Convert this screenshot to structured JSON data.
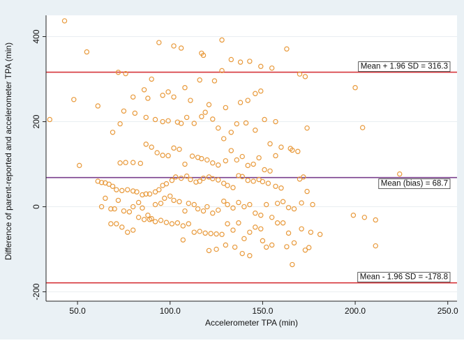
{
  "chart_data": {
    "type": "scatter",
    "xlabel": "Accelerometer TPA (min)",
    "ylabel": "Difference of parent-reported and accelerometer TPA (min)",
    "xlim": [
      33,
      255
    ],
    "ylim": [
      -222,
      450
    ],
    "x_ticks": [
      50,
      100,
      150,
      200,
      250
    ],
    "x_tick_labels": [
      "50.0",
      "100.0",
      "150.0",
      "200.0",
      "250.0"
    ],
    "y_ticks": [
      -200,
      0,
      200,
      400
    ],
    "y_tick_labels": [
      "-200",
      "0",
      "200",
      "400"
    ],
    "grid": true,
    "legend": "none",
    "colors": {
      "plot_background": "#ffffff",
      "outer_background": "#eaf1f5",
      "grid": "#e9eef1",
      "marker": "#e8993a",
      "limit_line": "#d6343a",
      "mean_line": "#7a3f8c"
    },
    "reference_lines": [
      {
        "y": 316.3,
        "label": "Mean + 1.96 SD = 316.3",
        "kind": "limit"
      },
      {
        "y": 68.7,
        "label": "Mean (bias) = 68.7",
        "kind": "mean"
      },
      {
        "y": -178.8,
        "label": "Mean - 1.96 SD = -178.8",
        "kind": "limit"
      }
    ],
    "points": [
      [
        43,
        437
      ],
      [
        35,
        205
      ],
      [
        48,
        252
      ],
      [
        51,
        97
      ],
      [
        55,
        364
      ],
      [
        61,
        237
      ],
      [
        72,
        316
      ],
      [
        76,
        313
      ],
      [
        94,
        386
      ],
      [
        102,
        378
      ],
      [
        106,
        373
      ],
      [
        117,
        361
      ],
      [
        128,
        392
      ],
      [
        118,
        356
      ],
      [
        163,
        371
      ],
      [
        155,
        326
      ],
      [
        173,
        306
      ],
      [
        170,
        312
      ],
      [
        133,
        346
      ],
      [
        138,
        340
      ],
      [
        143,
        342
      ],
      [
        149,
        330
      ],
      [
        86,
        275
      ],
      [
        90,
        300
      ],
      [
        99,
        270
      ],
      [
        108,
        280
      ],
      [
        116,
        298
      ],
      [
        124,
        296
      ],
      [
        128,
        320
      ],
      [
        96,
        262
      ],
      [
        80,
        258
      ],
      [
        88,
        255
      ],
      [
        102,
        258
      ],
      [
        111,
        250
      ],
      [
        121,
        240
      ],
      [
        130,
        233
      ],
      [
        138,
        245
      ],
      [
        142,
        250
      ],
      [
        146,
        266
      ],
      [
        149,
        272
      ],
      [
        69,
        175
      ],
      [
        73,
        195
      ],
      [
        75,
        225
      ],
      [
        81,
        220
      ],
      [
        87,
        210
      ],
      [
        92,
        205
      ],
      [
        96,
        200
      ],
      [
        99,
        202
      ],
      [
        104,
        199
      ],
      [
        106,
        196
      ],
      [
        109,
        210
      ],
      [
        113,
        196
      ],
      [
        117,
        212
      ],
      [
        119,
        222
      ],
      [
        123,
        206
      ],
      [
        126,
        185
      ],
      [
        129,
        160
      ],
      [
        133,
        175
      ],
      [
        136,
        195
      ],
      [
        141,
        197
      ],
      [
        146,
        180
      ],
      [
        151,
        205
      ],
      [
        154,
        148
      ],
      [
        157,
        200
      ],
      [
        160,
        140
      ],
      [
        174,
        185
      ],
      [
        165,
        137
      ],
      [
        73,
        103
      ],
      [
        76,
        104
      ],
      [
        80,
        104
      ],
      [
        84,
        102
      ],
      [
        87,
        147
      ],
      [
        90,
        140
      ],
      [
        93,
        127
      ],
      [
        96,
        121
      ],
      [
        99,
        120
      ],
      [
        102,
        138
      ],
      [
        105,
        135
      ],
      [
        108,
        100
      ],
      [
        112,
        119
      ],
      [
        115,
        116
      ],
      [
        117,
        113
      ],
      [
        120,
        110
      ],
      [
        123,
        103
      ],
      [
        126,
        98
      ],
      [
        130,
        108
      ],
      [
        133,
        132
      ],
      [
        136,
        110
      ],
      [
        139,
        118
      ],
      [
        142,
        97
      ],
      [
        145,
        100
      ],
      [
        148,
        115
      ],
      [
        151,
        87
      ],
      [
        154,
        84
      ],
      [
        157,
        120
      ],
      [
        166,
        133
      ],
      [
        169,
        130
      ],
      [
        61,
        60
      ],
      [
        63,
        57
      ],
      [
        65,
        56
      ],
      [
        67,
        53
      ],
      [
        69,
        48
      ],
      [
        71,
        40
      ],
      [
        74,
        38
      ],
      [
        77,
        40
      ],
      [
        80,
        37
      ],
      [
        82,
        35
      ],
      [
        85,
        28
      ],
      [
        87,
        30
      ],
      [
        89,
        30
      ],
      [
        92,
        35
      ],
      [
        94,
        40
      ],
      [
        96,
        50
      ],
      [
        98,
        54
      ],
      [
        101,
        62
      ],
      [
        103,
        70
      ],
      [
        106,
        67
      ],
      [
        109,
        72
      ],
      [
        111,
        64
      ],
      [
        114,
        58
      ],
      [
        116,
        60
      ],
      [
        118,
        67
      ],
      [
        121,
        70
      ],
      [
        123,
        66
      ],
      [
        126,
        63
      ],
      [
        129,
        55
      ],
      [
        131,
        50
      ],
      [
        134,
        45
      ],
      [
        137,
        73
      ],
      [
        139,
        71
      ],
      [
        142,
        62
      ],
      [
        145,
        60
      ],
      [
        148,
        64
      ],
      [
        150,
        59
      ],
      [
        153,
        55
      ],
      [
        157,
        48
      ],
      [
        160,
        44
      ],
      [
        170,
        65
      ],
      [
        172,
        70
      ],
      [
        174,
        36
      ],
      [
        177,
        5
      ],
      [
        63,
        0
      ],
      [
        65,
        20
      ],
      [
        68,
        -5
      ],
      [
        70,
        -5
      ],
      [
        72,
        15
      ],
      [
        75,
        -10
      ],
      [
        78,
        -12
      ],
      [
        80,
        0
      ],
      [
        83,
        10
      ],
      [
        85,
        -3
      ],
      [
        88,
        -20
      ],
      [
        90,
        -28
      ],
      [
        92,
        5
      ],
      [
        95,
        8
      ],
      [
        97,
        20
      ],
      [
        100,
        25
      ],
      [
        102,
        15
      ],
      [
        105,
        12
      ],
      [
        108,
        -10
      ],
      [
        110,
        8
      ],
      [
        113,
        5
      ],
      [
        115,
        -5
      ],
      [
        118,
        -10
      ],
      [
        120,
        0
      ],
      [
        123,
        -15
      ],
      [
        126,
        -8
      ],
      [
        129,
        13
      ],
      [
        131,
        5
      ],
      [
        134,
        -3
      ],
      [
        137,
        10
      ],
      [
        140,
        0
      ],
      [
        143,
        5
      ],
      [
        146,
        -15
      ],
      [
        149,
        -20
      ],
      [
        152,
        5
      ],
      [
        155,
        -25
      ],
      [
        158,
        8
      ],
      [
        161,
        12
      ],
      [
        164,
        -2
      ],
      [
        167,
        -5
      ],
      [
        171,
        9
      ],
      [
        68,
        -40
      ],
      [
        71,
        -40
      ],
      [
        74,
        -48
      ],
      [
        77,
        -60
      ],
      [
        80,
        -55
      ],
      [
        83,
        -25
      ],
      [
        86,
        -30
      ],
      [
        89,
        -30
      ],
      [
        92,
        -35
      ],
      [
        95,
        -32
      ],
      [
        98,
        -37
      ],
      [
        101,
        -40
      ],
      [
        104,
        -38
      ],
      [
        107,
        -45
      ],
      [
        110,
        -40
      ],
      [
        113,
        -60
      ],
      [
        116,
        -58
      ],
      [
        119,
        -62
      ],
      [
        122,
        -63
      ],
      [
        125,
        -64
      ],
      [
        128,
        -65
      ],
      [
        131,
        -40
      ],
      [
        134,
        -55
      ],
      [
        137,
        -38
      ],
      [
        140,
        -75
      ],
      [
        143,
        -60
      ],
      [
        146,
        -48
      ],
      [
        149,
        -52
      ],
      [
        152,
        -95
      ],
      [
        155,
        -90
      ],
      [
        158,
        -38
      ],
      [
        161,
        -38
      ],
      [
        164,
        -62
      ],
      [
        167,
        -85
      ],
      [
        171,
        -52
      ],
      [
        175,
        -96
      ],
      [
        176,
        -60
      ],
      [
        181,
        -65
      ],
      [
        107,
        -78
      ],
      [
        121,
        -103
      ],
      [
        125,
        -100
      ],
      [
        130,
        -90
      ],
      [
        135,
        -95
      ],
      [
        139,
        -110
      ],
      [
        143,
        -115
      ],
      [
        150,
        -80
      ],
      [
        163,
        -94
      ],
      [
        166,
        -136
      ],
      [
        173,
        -102
      ],
      [
        200,
        280
      ],
      [
        204,
        186
      ],
      [
        199,
        -20
      ],
      [
        205,
        -25
      ],
      [
        211,
        -31
      ],
      [
        211,
        -92
      ],
      [
        224,
        77
      ]
    ]
  }
}
